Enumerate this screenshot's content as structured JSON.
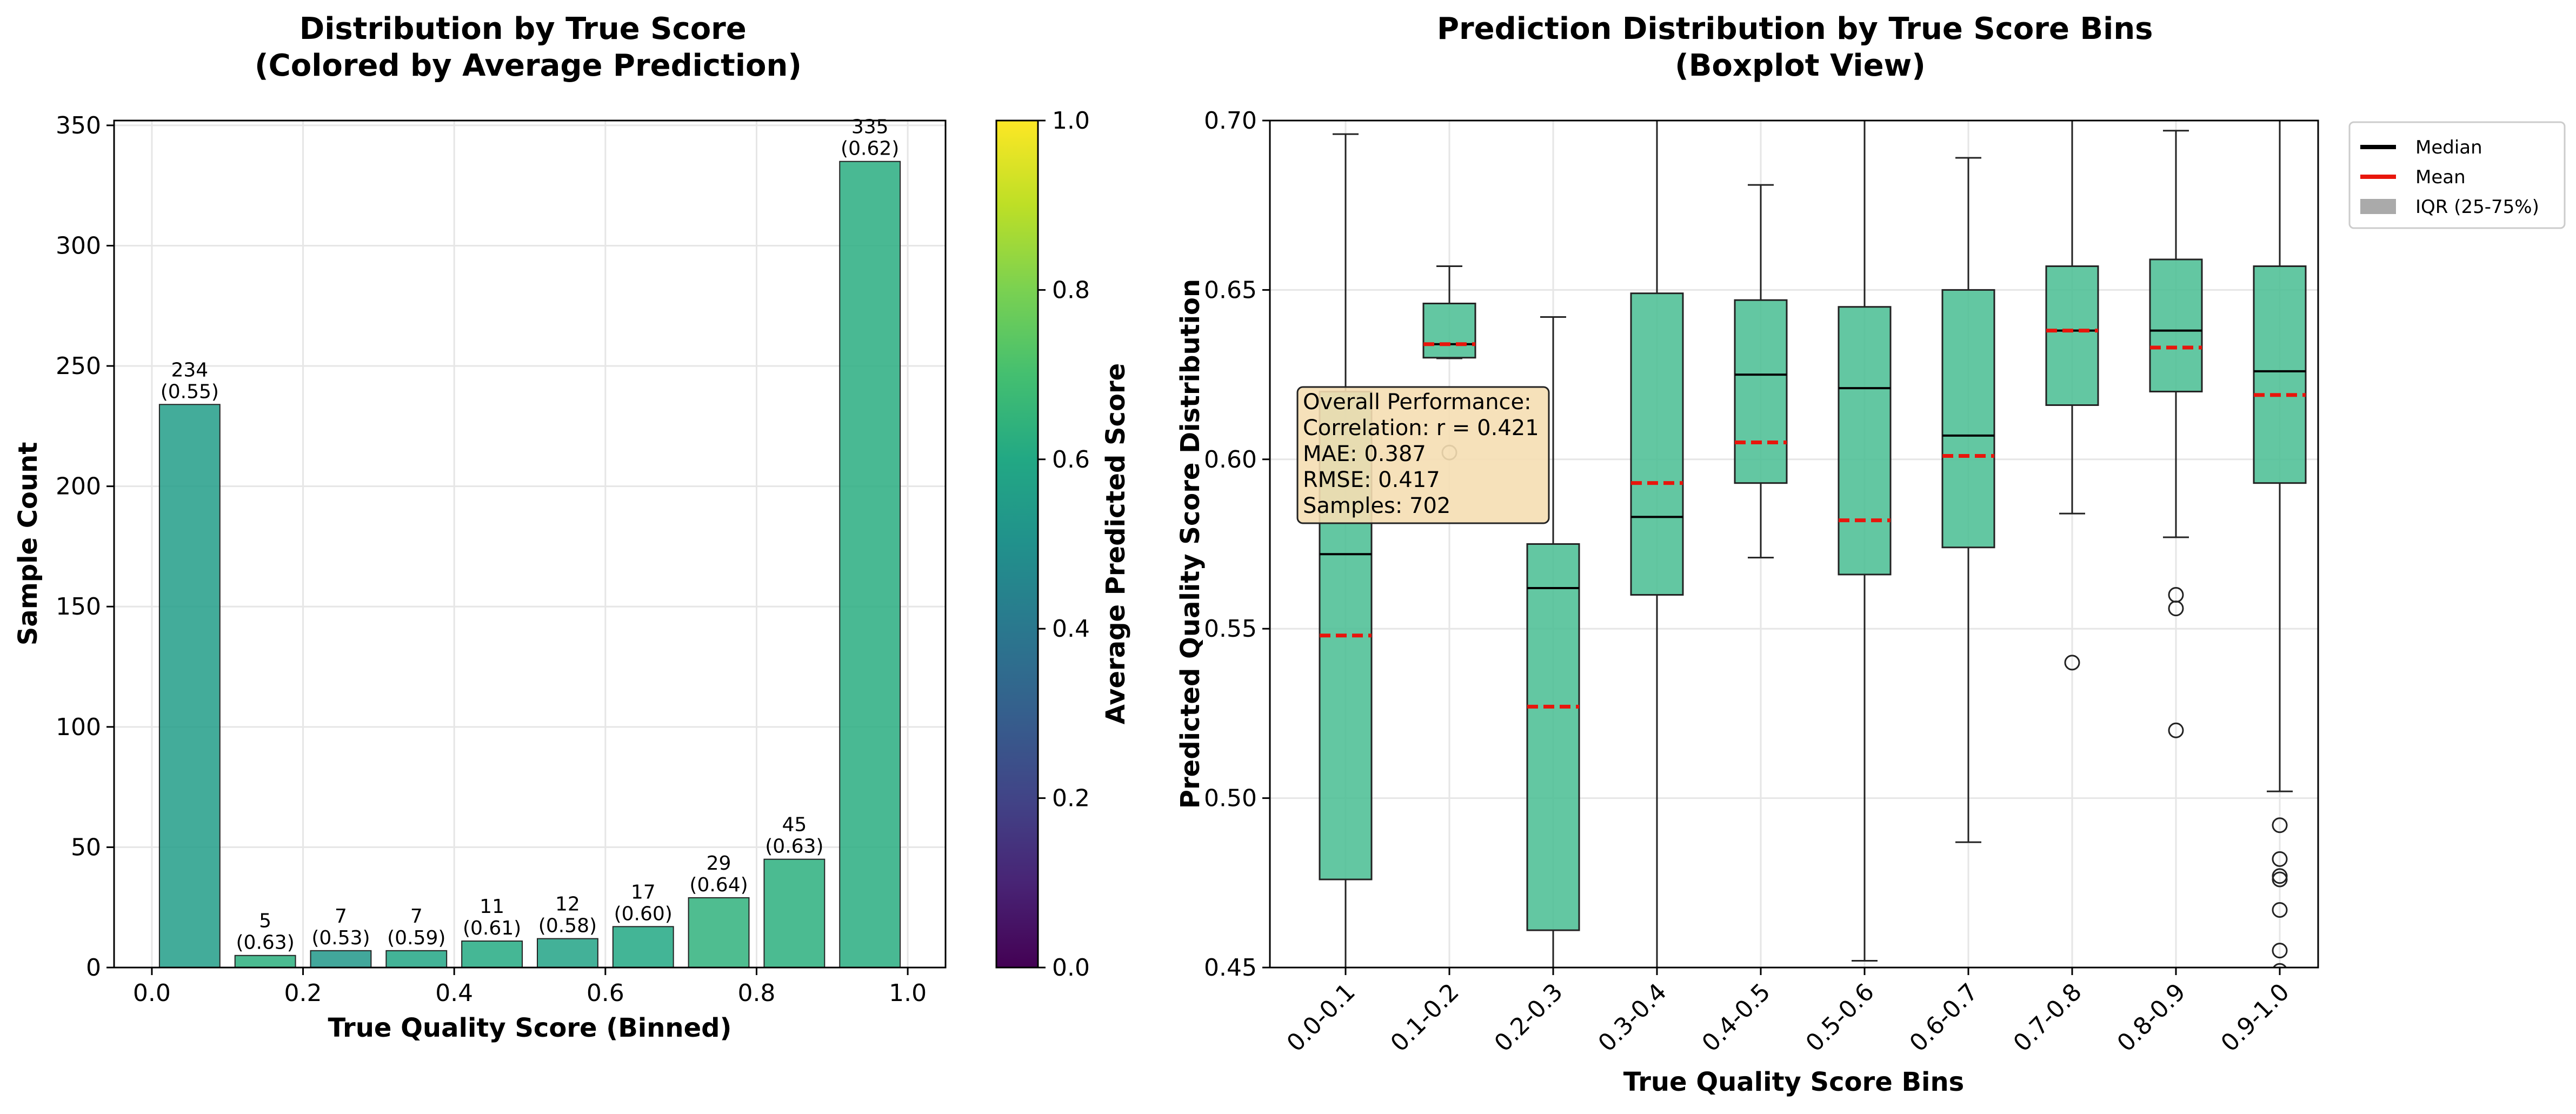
{
  "chart_data": [
    {
      "type": "bar",
      "title": "Distribution by True Score\n(Colored by Average Prediction)",
      "xlabel": "True Quality Score (Binned)",
      "ylabel": "Sample Count",
      "xlim": [
        -0.05,
        1.05
      ],
      "ylim": [
        0,
        352
      ],
      "x_ticks": [
        "0.0",
        "0.2",
        "0.4",
        "0.6",
        "0.8",
        "1.0"
      ],
      "y_ticks": [
        "0",
        "50",
        "100",
        "150",
        "200",
        "250",
        "300",
        "350"
      ],
      "grid": true,
      "bars": [
        {
          "x": 0.05,
          "count": 234,
          "avg_pred": 0.55,
          "label": "234\n(0.55)"
        },
        {
          "x": 0.15,
          "count": 5,
          "avg_pred": 0.63,
          "label": "5\n(0.63)"
        },
        {
          "x": 0.25,
          "count": 7,
          "avg_pred": 0.53,
          "label": "7\n(0.53)"
        },
        {
          "x": 0.35,
          "count": 7,
          "avg_pred": 0.59,
          "label": "7\n(0.59)"
        },
        {
          "x": 0.45,
          "count": 11,
          "avg_pred": 0.61,
          "label": "11\n(0.61)"
        },
        {
          "x": 0.55,
          "count": 12,
          "avg_pred": 0.58,
          "label": "12\n(0.58)"
        },
        {
          "x": 0.65,
          "count": 17,
          "avg_pred": 0.6,
          "label": "17\n(0.60)"
        },
        {
          "x": 0.75,
          "count": 29,
          "avg_pred": 0.64,
          "label": "29\n(0.64)"
        },
        {
          "x": 0.85,
          "count": 45,
          "avg_pred": 0.63,
          "label": "45\n(0.63)"
        },
        {
          "x": 0.95,
          "count": 335,
          "avg_pred": 0.62,
          "label": "335\n(0.62)"
        }
      ],
      "colorbar": {
        "label": "Average Predicted Score",
        "range": [
          0,
          1
        ],
        "colormap": "viridis",
        "ticks": [
          "0.0",
          "0.2",
          "0.4",
          "0.6",
          "0.8",
          "1.0"
        ]
      }
    },
    {
      "type": "boxplot",
      "title": "Prediction Distribution by True Score Bins\n(Boxplot View)",
      "xlabel": "True Quality Score Bins",
      "ylabel": "Predicted Quality Score Distribution",
      "ylim": [
        0.45,
        0.7
      ],
      "y_ticks": [
        "0.45",
        "0.50",
        "0.55",
        "0.60",
        "0.65",
        "0.70"
      ],
      "grid": true,
      "box_color": "#4dbf95",
      "median_color": "#000000",
      "mean_color": "#e8160c",
      "categories": [
        "0.0-0.1",
        "0.1-0.2",
        "0.2-0.3",
        "0.3-0.4",
        "0.4-0.5",
        "0.5-0.6",
        "0.6-0.7",
        "0.7-0.8",
        "0.8-0.9",
        "0.9-1.0"
      ],
      "boxes": [
        {
          "whislo": 0.4,
          "q1": 0.476,
          "med": 0.572,
          "mean": 0.548,
          "q3": 0.62,
          "whishi": 0.696,
          "fliers": []
        },
        {
          "whislo": 0.6298,
          "q1": 0.63,
          "med": 0.634,
          "mean": 0.634,
          "q3": 0.646,
          "whishi": 0.657,
          "fliers": [
            0.602
          ]
        },
        {
          "whislo": 0.4,
          "q1": 0.461,
          "med": 0.562,
          "mean": 0.527,
          "q3": 0.575,
          "whishi": 0.642,
          "fliers": []
        },
        {
          "whislo": 0.4,
          "q1": 0.56,
          "med": 0.583,
          "mean": 0.593,
          "q3": 0.649,
          "whishi": 0.75,
          "fliers": []
        },
        {
          "whislo": 0.571,
          "q1": 0.593,
          "med": 0.625,
          "mean": 0.605,
          "q3": 0.647,
          "whishi": 0.681,
          "fliers": []
        },
        {
          "whislo": 0.452,
          "q1": 0.566,
          "med": 0.621,
          "mean": 0.582,
          "q3": 0.645,
          "whishi": 0.75,
          "fliers": []
        },
        {
          "whislo": 0.487,
          "q1": 0.574,
          "med": 0.607,
          "mean": 0.601,
          "q3": 0.65,
          "whishi": 0.689,
          "fliers": []
        },
        {
          "whislo": 0.584,
          "q1": 0.616,
          "med": 0.638,
          "mean": 0.638,
          "q3": 0.657,
          "whishi": 0.75,
          "fliers": [
            0.54
          ]
        },
        {
          "whislo": 0.577,
          "q1": 0.62,
          "med": 0.638,
          "mean": 0.633,
          "q3": 0.659,
          "whishi": 0.697,
          "fliers": [
            0.56,
            0.556,
            0.52
          ]
        },
        {
          "whislo": 0.502,
          "q1": 0.593,
          "med": 0.626,
          "mean": 0.619,
          "q3": 0.657,
          "whishi": 0.75,
          "fliers": [
            0.492,
            0.482,
            0.477,
            0.476,
            0.467,
            0.455,
            0.449
          ]
        }
      ],
      "legend": {
        "position": "outside-upper-right",
        "entries": [
          {
            "label": "Median",
            "color": "#000000",
            "kind": "line"
          },
          {
            "label": "Mean",
            "color": "#e8160c",
            "kind": "line"
          },
          {
            "label": "IQR (25-75%)",
            "color": "#aaaaaa",
            "kind": "patch"
          }
        ]
      },
      "annotation": {
        "lines": [
          "Overall Performance:",
          "Correlation: r = 0.421",
          "MAE: 0.387",
          "RMSE: 0.417",
          "Samples: 702"
        ]
      }
    }
  ]
}
